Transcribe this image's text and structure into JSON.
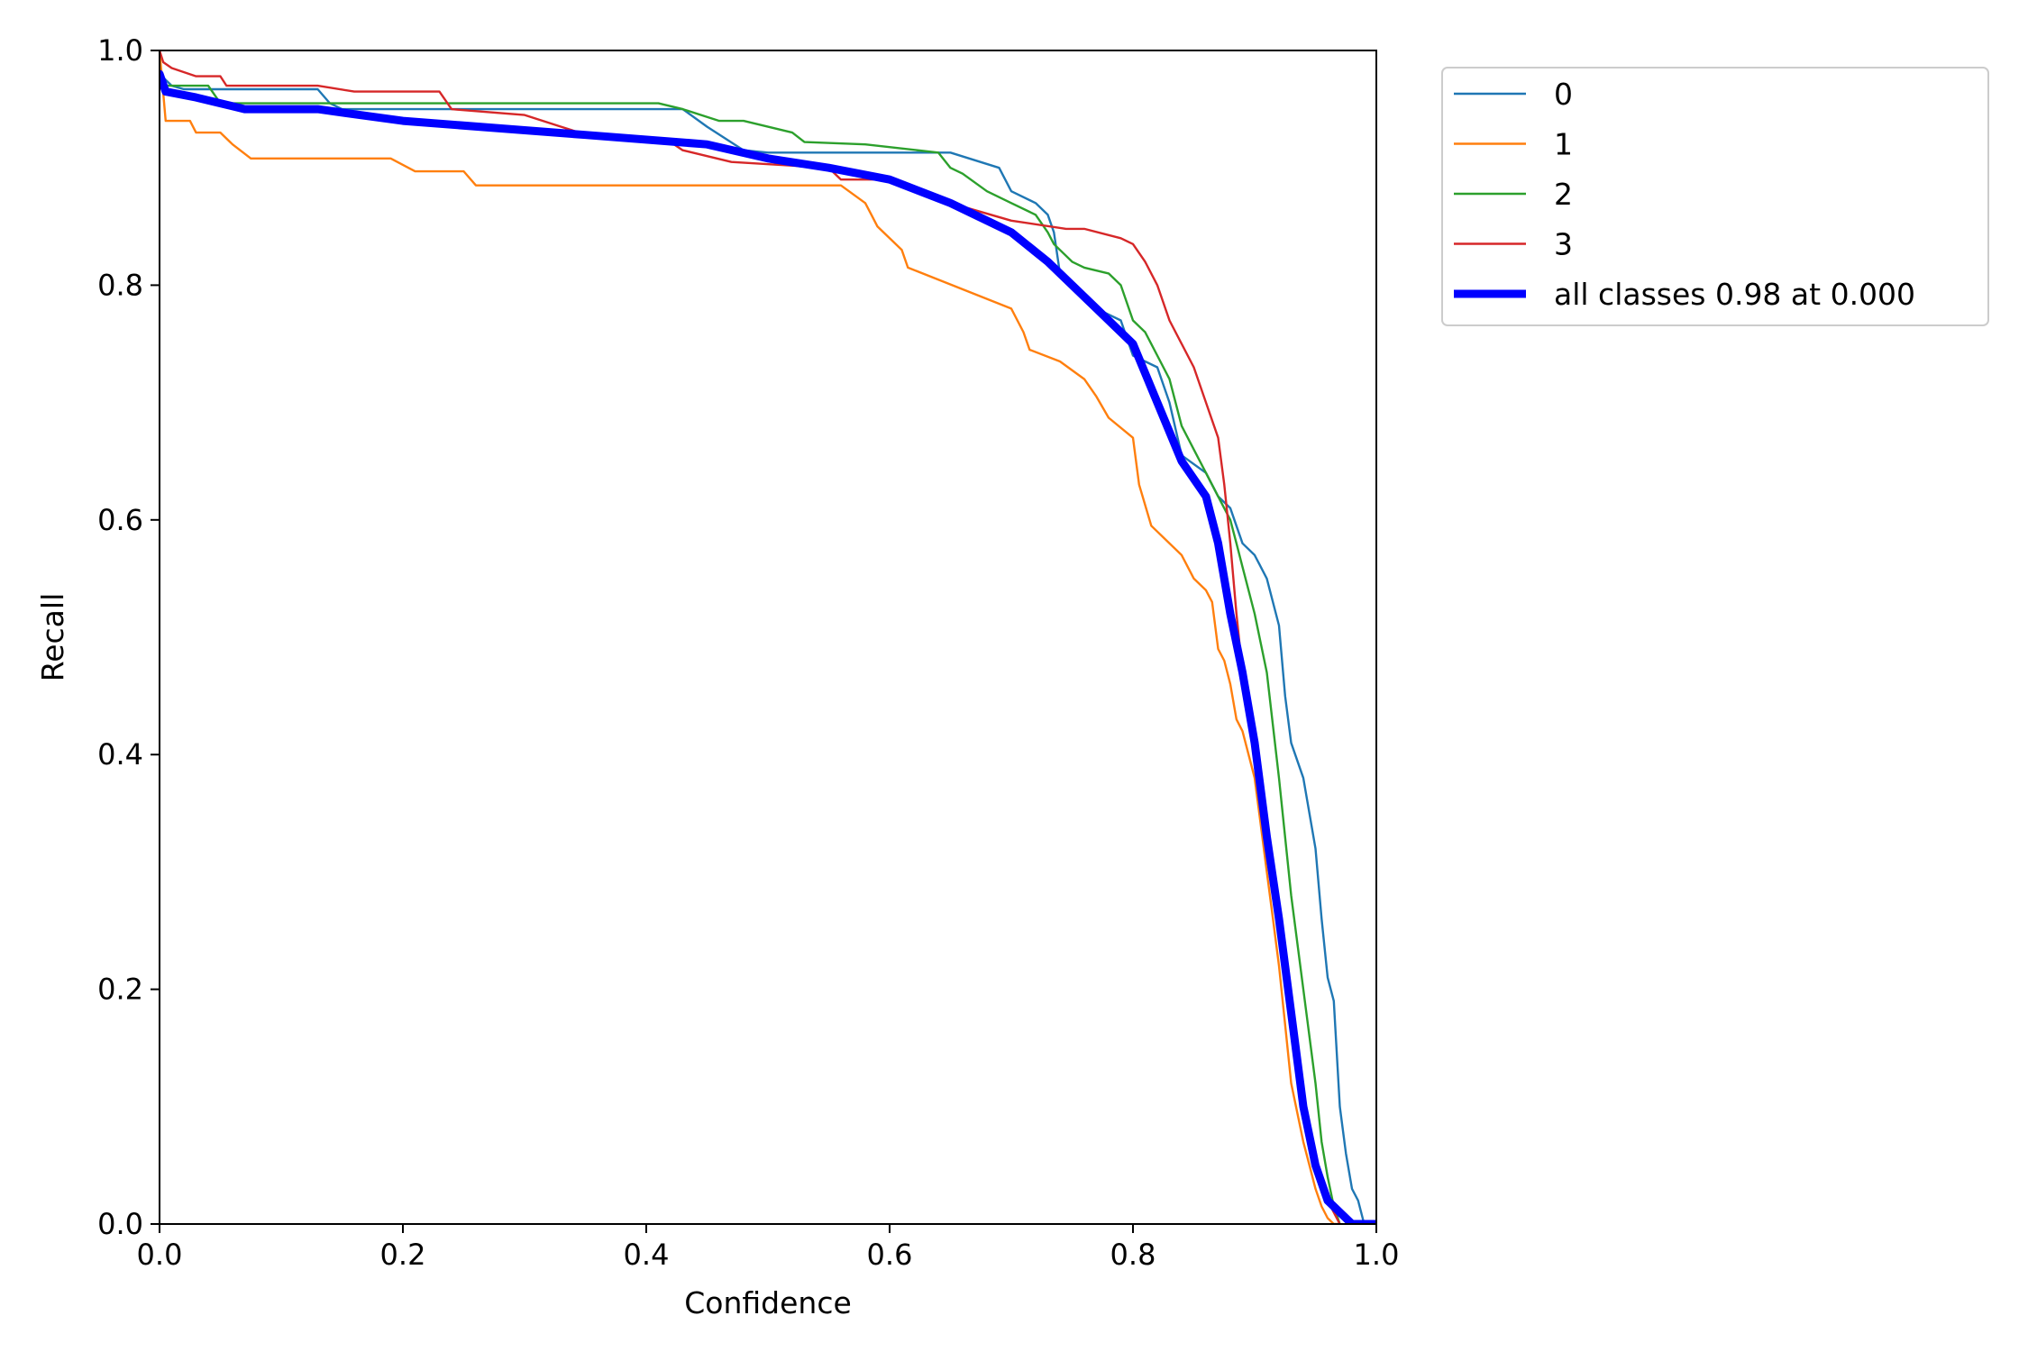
{
  "chart_data": {
    "type": "line",
    "title": "",
    "xlabel": "Confidence",
    "ylabel": "Recall",
    "xlim": [
      0,
      1
    ],
    "ylim": [
      0,
      1
    ],
    "xticks": [
      "0.0",
      "0.2",
      "0.4",
      "0.6",
      "0.8",
      "1.0"
    ],
    "yticks": [
      "0.0",
      "0.2",
      "0.4",
      "0.6",
      "0.8",
      "1.0"
    ],
    "grid": false,
    "legend_position": "outside top-right",
    "series": [
      {
        "name": "0",
        "color": "#1f77b4",
        "width": "thin",
        "x": [
          0.0,
          0.01,
          0.02,
          0.13,
          0.14,
          0.15,
          0.43,
          0.45,
          0.48,
          0.5,
          0.6,
          0.65,
          0.69,
          0.7,
          0.72,
          0.73,
          0.735,
          0.74,
          0.75,
          0.77,
          0.79,
          0.8,
          0.82,
          0.83,
          0.84,
          0.86,
          0.87,
          0.88,
          0.89,
          0.9,
          0.91,
          0.92,
          0.925,
          0.93,
          0.94,
          0.95,
          0.955,
          0.96,
          0.965,
          0.97,
          0.975,
          0.98,
          0.985,
          0.99,
          1.0
        ],
        "y": [
          0.98,
          0.97,
          0.967,
          0.967,
          0.955,
          0.95,
          0.95,
          0.935,
          0.915,
          0.913,
          0.913,
          0.913,
          0.9,
          0.88,
          0.87,
          0.86,
          0.845,
          0.81,
          0.8,
          0.78,
          0.77,
          0.74,
          0.73,
          0.7,
          0.655,
          0.64,
          0.62,
          0.61,
          0.58,
          0.57,
          0.55,
          0.51,
          0.45,
          0.41,
          0.38,
          0.32,
          0.26,
          0.21,
          0.19,
          0.1,
          0.06,
          0.03,
          0.02,
          0.0,
          0.0
        ]
      },
      {
        "name": "1",
        "color": "#ff7f0e",
        "width": "thin",
        "x": [
          0.0,
          0.005,
          0.025,
          0.03,
          0.05,
          0.06,
          0.075,
          0.19,
          0.21,
          0.25,
          0.26,
          0.3,
          0.56,
          0.58,
          0.585,
          0.59,
          0.6,
          0.61,
          0.615,
          0.7,
          0.71,
          0.715,
          0.74,
          0.76,
          0.77,
          0.78,
          0.8,
          0.805,
          0.815,
          0.84,
          0.85,
          0.86,
          0.865,
          0.87,
          0.875,
          0.88,
          0.885,
          0.89,
          0.9,
          0.905,
          0.91,
          0.915,
          0.92,
          0.925,
          0.93,
          0.94,
          0.945,
          0.95,
          0.955,
          0.96,
          0.965,
          0.97
        ],
        "y": [
          1.0,
          0.94,
          0.94,
          0.93,
          0.93,
          0.92,
          0.908,
          0.908,
          0.897,
          0.897,
          0.885,
          0.885,
          0.885,
          0.87,
          0.86,
          0.85,
          0.84,
          0.83,
          0.815,
          0.78,
          0.76,
          0.745,
          0.735,
          0.72,
          0.705,
          0.687,
          0.67,
          0.63,
          0.595,
          0.57,
          0.55,
          0.54,
          0.53,
          0.49,
          0.48,
          0.46,
          0.43,
          0.42,
          0.38,
          0.34,
          0.3,
          0.26,
          0.22,
          0.17,
          0.12,
          0.07,
          0.05,
          0.03,
          0.015,
          0.005,
          0.0,
          0.0
        ]
      },
      {
        "name": "2",
        "color": "#2ca02c",
        "width": "thin",
        "x": [
          0.0,
          0.005,
          0.04,
          0.05,
          0.14,
          0.15,
          0.41,
          0.43,
          0.46,
          0.48,
          0.5,
          0.52,
          0.53,
          0.58,
          0.64,
          0.65,
          0.66,
          0.68,
          0.7,
          0.72,
          0.73,
          0.735,
          0.74,
          0.75,
          0.76,
          0.78,
          0.79,
          0.8,
          0.81,
          0.82,
          0.83,
          0.84,
          0.85,
          0.86,
          0.87,
          0.88,
          0.885,
          0.89,
          0.9,
          0.91,
          0.92,
          0.93,
          0.94,
          0.95,
          0.955,
          0.96,
          0.965,
          0.97
        ],
        "y": [
          0.98,
          0.97,
          0.97,
          0.955,
          0.955,
          0.955,
          0.955,
          0.95,
          0.94,
          0.94,
          0.935,
          0.93,
          0.922,
          0.92,
          0.913,
          0.9,
          0.895,
          0.88,
          0.87,
          0.86,
          0.845,
          0.835,
          0.83,
          0.82,
          0.815,
          0.81,
          0.8,
          0.77,
          0.76,
          0.74,
          0.72,
          0.68,
          0.66,
          0.64,
          0.62,
          0.6,
          0.58,
          0.56,
          0.52,
          0.47,
          0.38,
          0.28,
          0.2,
          0.12,
          0.07,
          0.04,
          0.015,
          0.0
        ]
      },
      {
        "name": "3",
        "color": "#d62728",
        "width": "thin",
        "x": [
          0.0,
          0.003,
          0.01,
          0.03,
          0.05,
          0.055,
          0.06,
          0.13,
          0.16,
          0.23,
          0.24,
          0.3,
          0.33,
          0.36,
          0.42,
          0.43,
          0.45,
          0.47,
          0.55,
          0.56,
          0.6,
          0.65,
          0.7,
          0.745,
          0.76,
          0.79,
          0.8,
          0.81,
          0.82,
          0.83,
          0.84,
          0.85,
          0.86,
          0.87,
          0.875,
          0.88,
          0.885,
          0.89,
          0.9,
          0.91,
          0.92,
          0.93,
          0.94,
          0.95,
          0.96,
          0.97
        ],
        "y": [
          1.0,
          0.99,
          0.985,
          0.978,
          0.978,
          0.97,
          0.97,
          0.97,
          0.965,
          0.965,
          0.95,
          0.945,
          0.935,
          0.925,
          0.922,
          0.915,
          0.91,
          0.905,
          0.9,
          0.89,
          0.89,
          0.87,
          0.855,
          0.848,
          0.848,
          0.84,
          0.835,
          0.82,
          0.8,
          0.77,
          0.75,
          0.73,
          0.7,
          0.67,
          0.63,
          0.58,
          0.52,
          0.47,
          0.4,
          0.33,
          0.25,
          0.17,
          0.1,
          0.05,
          0.02,
          0.0
        ]
      },
      {
        "name": "all classes 0.98 at 0.000",
        "color": "#0000ff",
        "width": "thick",
        "x": [
          0.0,
          0.005,
          0.03,
          0.05,
          0.07,
          0.13,
          0.2,
          0.3,
          0.35,
          0.45,
          0.5,
          0.55,
          0.6,
          0.65,
          0.7,
          0.73,
          0.75,
          0.77,
          0.8,
          0.82,
          0.84,
          0.86,
          0.87,
          0.88,
          0.89,
          0.9,
          0.91,
          0.92,
          0.93,
          0.94,
          0.95,
          0.96,
          0.97,
          0.98,
          0.99,
          1.0
        ],
        "y": [
          0.98,
          0.965,
          0.96,
          0.955,
          0.95,
          0.95,
          0.94,
          0.932,
          0.928,
          0.92,
          0.908,
          0.9,
          0.89,
          0.87,
          0.845,
          0.82,
          0.8,
          0.78,
          0.75,
          0.7,
          0.65,
          0.62,
          0.58,
          0.52,
          0.47,
          0.41,
          0.33,
          0.26,
          0.18,
          0.1,
          0.05,
          0.02,
          0.01,
          0.0,
          0.0,
          0.0
        ]
      }
    ]
  }
}
